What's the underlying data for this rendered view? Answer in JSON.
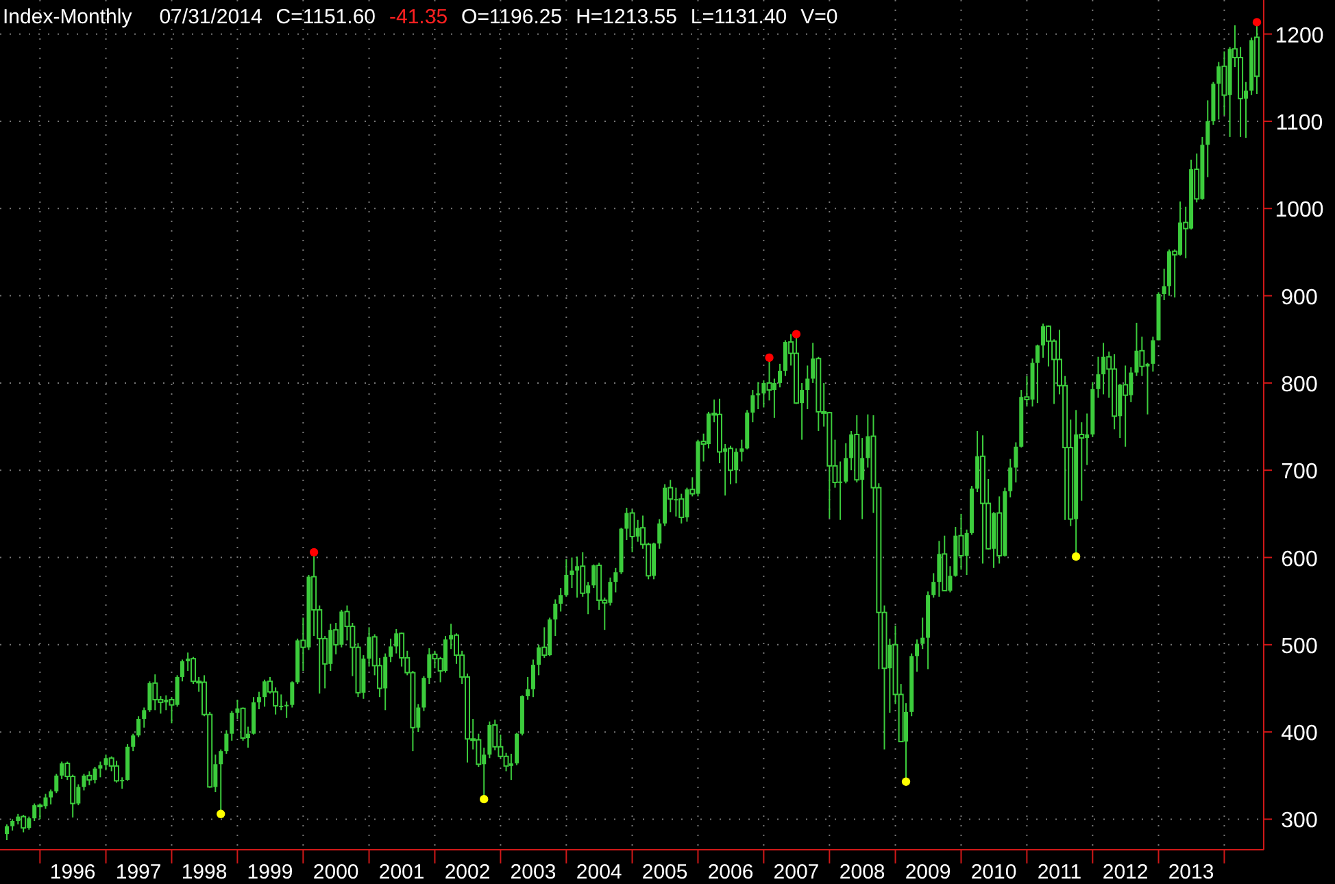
{
  "chart_data": {
    "type": "candlestick",
    "title": "Index-Monthly",
    "annotations": [
      "07/31/2014",
      "C=1151.60",
      "-41.35",
      "O=1196.25",
      "H=1213.55",
      "L=1131.40",
      "V=0"
    ],
    "color": "#3ccc3c",
    "grid": true,
    "marker": "circle",
    "xlim": [
      "1995-05-24",
      "2014-08-08"
    ],
    "xticks": [
      {
        "value": "1996-01",
        "label": null
      },
      {
        "value": "1996-07",
        "label": "1996"
      },
      {
        "value": "1997-01",
        "label": null
      },
      {
        "value": "1997-07",
        "label": "1997"
      },
      {
        "value": "1998-01",
        "label": null
      },
      {
        "value": "1998-07",
        "label": "1998"
      },
      {
        "value": "1999-01",
        "label": null
      },
      {
        "value": "1999-07",
        "label": "1999"
      },
      {
        "value": "2000-01",
        "label": null
      },
      {
        "value": "2000-07",
        "label": "2000"
      },
      {
        "value": "2001-01",
        "label": null
      },
      {
        "value": "2001-07",
        "label": "2001"
      },
      {
        "value": "2002-01",
        "label": null
      },
      {
        "value": "2002-07",
        "label": "2002"
      },
      {
        "value": "2003-01",
        "label": null
      },
      {
        "value": "2003-07",
        "label": "2003"
      },
      {
        "value": "2004-01",
        "label": null
      },
      {
        "value": "2004-07",
        "label": "2004"
      },
      {
        "value": "2005-01",
        "label": null
      },
      {
        "value": "2005-07",
        "label": "2005"
      },
      {
        "value": "2006-01",
        "label": null
      },
      {
        "value": "2006-07",
        "label": "2006"
      },
      {
        "value": "2007-01",
        "label": null
      },
      {
        "value": "2007-07",
        "label": "2007"
      },
      {
        "value": "2008-01",
        "label": null
      },
      {
        "value": "2008-07",
        "label": "2008"
      },
      {
        "value": "2009-01",
        "label": null
      },
      {
        "value": "2009-07",
        "label": "2009"
      },
      {
        "value": "2010-01",
        "label": null
      },
      {
        "value": "2010-07",
        "label": "2010"
      },
      {
        "value": "2011-01",
        "label": null
      },
      {
        "value": "2011-07",
        "label": "2011"
      },
      {
        "value": "2012-01",
        "label": null
      },
      {
        "value": "2012-07",
        "label": "2012"
      },
      {
        "value": "2013-01",
        "label": null
      },
      {
        "value": "2013-07",
        "label": "2013"
      },
      {
        "value": "2014-01",
        "label": null
      }
    ],
    "ylim": [
      265,
      1239
    ],
    "yticks": [
      300,
      400,
      500,
      600,
      700,
      800,
      900,
      1000,
      1100,
      1200
    ],
    "x": [
      "1995-07",
      "1995-08",
      "1995-09",
      "1995-10",
      "1995-11",
      "1995-12",
      "1996-01",
      "1996-02",
      "1996-03",
      "1996-04",
      "1996-05",
      "1996-06",
      "1996-07",
      "1996-08",
      "1996-09",
      "1996-10",
      "1996-11",
      "1996-12",
      "1997-01",
      "1997-02",
      "1997-03",
      "1997-04",
      "1997-05",
      "1997-06",
      "1997-07",
      "1997-08",
      "1997-09",
      "1997-10",
      "1997-11",
      "1997-12",
      "1998-01",
      "1998-02",
      "1998-03",
      "1998-04",
      "1998-05",
      "1998-06",
      "1998-07",
      "1998-08",
      "1998-09",
      "1998-10",
      "1998-11",
      "1998-12",
      "1999-01",
      "1999-02",
      "1999-03",
      "1999-04",
      "1999-05",
      "1999-06",
      "1999-07",
      "1999-08",
      "1999-09",
      "1999-10",
      "1999-11",
      "1999-12",
      "2000-01",
      "2000-02",
      "2000-03",
      "2000-04",
      "2000-05",
      "2000-06",
      "2000-07",
      "2000-08",
      "2000-09",
      "2000-10",
      "2000-11",
      "2000-12",
      "2001-01",
      "2001-02",
      "2001-03",
      "2001-04",
      "2001-05",
      "2001-06",
      "2001-07",
      "2001-08",
      "2001-09",
      "2001-10",
      "2001-11",
      "2001-12",
      "2002-01",
      "2002-02",
      "2002-03",
      "2002-04",
      "2002-05",
      "2002-06",
      "2002-07",
      "2002-08",
      "2002-09",
      "2002-10",
      "2002-11",
      "2002-12",
      "2003-01",
      "2003-02",
      "2003-03",
      "2003-04",
      "2003-05",
      "2003-06",
      "2003-07",
      "2003-08",
      "2003-09",
      "2003-10",
      "2003-11",
      "2003-12",
      "2004-01",
      "2004-02",
      "2004-03",
      "2004-04",
      "2004-05",
      "2004-06",
      "2004-07",
      "2004-08",
      "2004-09",
      "2004-10",
      "2004-11",
      "2004-12",
      "2005-01",
      "2005-02",
      "2005-03",
      "2005-04",
      "2005-05",
      "2005-06",
      "2005-07",
      "2005-08",
      "2005-09",
      "2005-10",
      "2005-11",
      "2005-12",
      "2006-01",
      "2006-02",
      "2006-03",
      "2006-04",
      "2006-05",
      "2006-06",
      "2006-07",
      "2006-08",
      "2006-09",
      "2006-10",
      "2006-11",
      "2006-12",
      "2007-01",
      "2007-02",
      "2007-03",
      "2007-04",
      "2007-05",
      "2007-06",
      "2007-07",
      "2007-08",
      "2007-09",
      "2007-10",
      "2007-11",
      "2007-12",
      "2008-01",
      "2008-02",
      "2008-03",
      "2008-04",
      "2008-05",
      "2008-06",
      "2008-07",
      "2008-08",
      "2008-09",
      "2008-10",
      "2008-11",
      "2008-12",
      "2009-01",
      "2009-02",
      "2009-03",
      "2009-04",
      "2009-05",
      "2009-06",
      "2009-07",
      "2009-08",
      "2009-09",
      "2009-10",
      "2009-11",
      "2009-12",
      "2010-01",
      "2010-02",
      "2010-03",
      "2010-04",
      "2010-05",
      "2010-06",
      "2010-07",
      "2010-08",
      "2010-09",
      "2010-10",
      "2010-11",
      "2010-12",
      "2011-01",
      "2011-02",
      "2011-03",
      "2011-04",
      "2011-05",
      "2011-06",
      "2011-07",
      "2011-08",
      "2011-09",
      "2011-10",
      "2011-11",
      "2011-12",
      "2012-01",
      "2012-02",
      "2012-03",
      "2012-04",
      "2012-05",
      "2012-06",
      "2012-07",
      "2012-08",
      "2012-09",
      "2012-10",
      "2012-11",
      "2012-12",
      "2013-01",
      "2013-02",
      "2013-03",
      "2013-04",
      "2013-05",
      "2013-06",
      "2013-07",
      "2013-08",
      "2013-09",
      "2013-10",
      "2013-11",
      "2013-12",
      "2014-01",
      "2014-02",
      "2014-03",
      "2014-04",
      "2014-05",
      "2014-06",
      "2014-07"
    ],
    "ohlc": [
      [
        283,
        294,
        276,
        292
      ],
      [
        292,
        300,
        287,
        298
      ],
      [
        298,
        306,
        294,
        303
      ],
      [
        303,
        305,
        285,
        290
      ],
      [
        290,
        303,
        288,
        301
      ],
      [
        301,
        318,
        298,
        316
      ],
      [
        316,
        318,
        300,
        315
      ],
      [
        315,
        329,
        312,
        325
      ],
      [
        325,
        334,
        317,
        332
      ],
      [
        332,
        352,
        330,
        350
      ],
      [
        350,
        366,
        346,
        364
      ],
      [
        364,
        366,
        345,
        349
      ],
      [
        349,
        351,
        302,
        318
      ],
      [
        318,
        340,
        316,
        337
      ],
      [
        337,
        352,
        333,
        350
      ],
      [
        350,
        355,
        339,
        345
      ],
      [
        345,
        360,
        341,
        358
      ],
      [
        358,
        366,
        348,
        362
      ],
      [
        362,
        374,
        356,
        370
      ],
      [
        370,
        372,
        355,
        361
      ],
      [
        361,
        367,
        342,
        344
      ],
      [
        344,
        348,
        335,
        345
      ],
      [
        345,
        386,
        344,
        383
      ],
      [
        383,
        398,
        378,
        396
      ],
      [
        396,
        418,
        394,
        415
      ],
      [
        415,
        428,
        405,
        425
      ],
      [
        425,
        458,
        423,
        456
      ],
      [
        456,
        466,
        425,
        437
      ],
      [
        437,
        441,
        421,
        434
      ],
      [
        434,
        442,
        425,
        437
      ],
      [
        437,
        440,
        410,
        431
      ],
      [
        431,
        465,
        429,
        463
      ],
      [
        463,
        483,
        458,
        481
      ],
      [
        481,
        491,
        470,
        484
      ],
      [
        484,
        486,
        455,
        458
      ],
      [
        458,
        463,
        446,
        457
      ],
      [
        457,
        465,
        418,
        420
      ],
      [
        420,
        423,
        336,
        337
      ],
      [
        337,
        374,
        331,
        363
      ],
      [
        363,
        380,
        306,
        378
      ],
      [
        378,
        402,
        375,
        398
      ],
      [
        398,
        424,
        390,
        422
      ],
      [
        422,
        437,
        415,
        427
      ],
      [
        427,
        428,
        390,
        393
      ],
      [
        393,
        406,
        382,
        398
      ],
      [
        398,
        440,
        397,
        434
      ],
      [
        434,
        446,
        426,
        440
      ],
      [
        440,
        460,
        429,
        458
      ],
      [
        458,
        463,
        444,
        446
      ],
      [
        446,
        451,
        420,
        430
      ],
      [
        430,
        443,
        425,
        430
      ],
      [
        430,
        435,
        416,
        431
      ],
      [
        431,
        458,
        428,
        457
      ],
      [
        457,
        507,
        455,
        505
      ],
      [
        505,
        531,
        470,
        497
      ],
      [
        497,
        580,
        494,
        578
      ],
      [
        578,
        606,
        510,
        540
      ],
      [
        540,
        545,
        444,
        507
      ],
      [
        507,
        510,
        450,
        478
      ],
      [
        478,
        524,
        470,
        517
      ],
      [
        517,
        525,
        489,
        500
      ],
      [
        500,
        540,
        497,
        538
      ],
      [
        538,
        545,
        505,
        521
      ],
      [
        521,
        525,
        464,
        497
      ],
      [
        497,
        502,
        440,
        445
      ],
      [
        445,
        488,
        438,
        484
      ],
      [
        484,
        520,
        475,
        509
      ],
      [
        509,
        512,
        465,
        476
      ],
      [
        476,
        485,
        440,
        450
      ],
      [
        450,
        490,
        425,
        486
      ],
      [
        486,
        507,
        480,
        498
      ],
      [
        498,
        518,
        490,
        513
      ],
      [
        513,
        514,
        475,
        485
      ],
      [
        485,
        493,
        465,
        468
      ],
      [
        468,
        470,
        378,
        405
      ],
      [
        405,
        432,
        400,
        428
      ],
      [
        428,
        464,
        424,
        462
      ],
      [
        462,
        496,
        455,
        489
      ],
      [
        489,
        493,
        473,
        484
      ],
      [
        484,
        486,
        457,
        470
      ],
      [
        470,
        510,
        468,
        506
      ],
      [
        506,
        524,
        495,
        511
      ],
      [
        511,
        513,
        478,
        488
      ],
      [
        488,
        493,
        455,
        463
      ],
      [
        463,
        467,
        365,
        392
      ],
      [
        392,
        415,
        380,
        391
      ],
      [
        391,
        398,
        360,
        363
      ],
      [
        363,
        382,
        323,
        374
      ],
      [
        374,
        412,
        370,
        408
      ],
      [
        408,
        414,
        379,
        383
      ],
      [
        383,
        397,
        370,
        372
      ],
      [
        372,
        376,
        355,
        361
      ],
      [
        361,
        375,
        345,
        364
      ],
      [
        364,
        399,
        362,
        398
      ],
      [
        398,
        442,
        396,
        441
      ],
      [
        441,
        463,
        437,
        449
      ],
      [
        449,
        483,
        440,
        477
      ],
      [
        477,
        500,
        465,
        497
      ],
      [
        497,
        520,
        485,
        488
      ],
      [
        488,
        531,
        487,
        529
      ],
      [
        529,
        552,
        510,
        547
      ],
      [
        547,
        565,
        538,
        557
      ],
      [
        557,
        598,
        555,
        580
      ],
      [
        580,
        600,
        565,
        585
      ],
      [
        585,
        601,
        554,
        590
      ],
      [
        590,
        606,
        555,
        559
      ],
      [
        559,
        572,
        535,
        568
      ],
      [
        568,
        592,
        565,
        591
      ],
      [
        591,
        594,
        540,
        551
      ],
      [
        551,
        554,
        517,
        548
      ],
      [
        548,
        577,
        545,
        572
      ],
      [
        572,
        588,
        560,
        583
      ],
      [
        583,
        634,
        581,
        633
      ],
      [
        633,
        657,
        620,
        651
      ],
      [
        651,
        655,
        606,
        624
      ],
      [
        624,
        643,
        618,
        634
      ],
      [
        634,
        648,
        610,
        615
      ],
      [
        615,
        617,
        575,
        579
      ],
      [
        579,
        617,
        575,
        616
      ],
      [
        616,
        644,
        610,
        639
      ],
      [
        639,
        684,
        636,
        680
      ],
      [
        680,
        689,
        652,
        667
      ],
      [
        667,
        680,
        647,
        667
      ],
      [
        667,
        673,
        639,
        646
      ],
      [
        646,
        680,
        641,
        678
      ],
      [
        678,
        692,
        670,
        673
      ],
      [
        673,
        735,
        670,
        733
      ],
      [
        733,
        742,
        710,
        730
      ],
      [
        730,
        767,
        725,
        765
      ],
      [
        765,
        781,
        755,
        764
      ],
      [
        764,
        782,
        708,
        721
      ],
      [
        721,
        730,
        671,
        725
      ],
      [
        725,
        728,
        684,
        700
      ],
      [
        700,
        725,
        685,
        721
      ],
      [
        721,
        735,
        710,
        725
      ],
      [
        725,
        769,
        724,
        766
      ],
      [
        766,
        792,
        755,
        786
      ],
      [
        786,
        801,
        770,
        788
      ],
      [
        788,
        803,
        772,
        800
      ],
      [
        800,
        829,
        780,
        792
      ],
      [
        792,
        805,
        760,
        800
      ],
      [
        800,
        822,
        795,
        814
      ],
      [
        814,
        849,
        808,
        847
      ],
      [
        847,
        856,
        820,
        834
      ],
      [
        834,
        855,
        776,
        777
      ],
      [
        777,
        800,
        735,
        792
      ],
      [
        792,
        820,
        770,
        805
      ],
      [
        805,
        846,
        800,
        828
      ],
      [
        828,
        830,
        745,
        767
      ],
      [
        767,
        800,
        750,
        766
      ],
      [
        766,
        767,
        645,
        705
      ],
      [
        705,
        735,
        680,
        686
      ],
      [
        686,
        710,
        643,
        687
      ],
      [
        687,
        731,
        685,
        714
      ],
      [
        714,
        745,
        700,
        741
      ],
      [
        741,
        763,
        686,
        689
      ],
      [
        689,
        737,
        644,
        714
      ],
      [
        714,
        764,
        703,
        739
      ],
      [
        739,
        763,
        651,
        680
      ],
      [
        680,
        685,
        472,
        537
      ],
      [
        537,
        545,
        380,
        473
      ],
      [
        473,
        507,
        422,
        500
      ],
      [
        500,
        522,
        432,
        443
      ],
      [
        443,
        455,
        389,
        389
      ],
      [
        389,
        433,
        343,
        423
      ],
      [
        423,
        490,
        418,
        487
      ],
      [
        487,
        506,
        469,
        501
      ],
      [
        501,
        531,
        495,
        508
      ],
      [
        508,
        561,
        472,
        557
      ],
      [
        557,
        582,
        554,
        572
      ],
      [
        572,
        619,
        555,
        604
      ],
      [
        604,
        625,
        562,
        562
      ],
      [
        562,
        590,
        560,
        579
      ],
      [
        579,
        635,
        578,
        625
      ],
      [
        625,
        650,
        586,
        602
      ],
      [
        602,
        632,
        580,
        628
      ],
      [
        628,
        682,
        626,
        679
      ],
      [
        679,
        745,
        675,
        716
      ],
      [
        716,
        740,
        593,
        662
      ],
      [
        662,
        690,
        609,
        610
      ],
      [
        610,
        652,
        588,
        651
      ],
      [
        651,
        670,
        593,
        602
      ],
      [
        602,
        680,
        601,
        676
      ],
      [
        676,
        713,
        669,
        703
      ],
      [
        703,
        732,
        686,
        727
      ],
      [
        727,
        792,
        726,
        784
      ],
      [
        784,
        808,
        773,
        781
      ],
      [
        781,
        828,
        773,
        823
      ],
      [
        823,
        844,
        777,
        843
      ],
      [
        843,
        868,
        829,
        865
      ],
      [
        865,
        866,
        819,
        848
      ],
      [
        848,
        850,
        776,
        827
      ],
      [
        827,
        861,
        787,
        797
      ],
      [
        797,
        808,
        643,
        726
      ],
      [
        726,
        758,
        636,
        644
      ],
      [
        644,
        769,
        601,
        741
      ],
      [
        741,
        755,
        665,
        737
      ],
      [
        737,
        765,
        706,
        741
      ],
      [
        741,
        801,
        738,
        793
      ],
      [
        793,
        830,
        783,
        810
      ],
      [
        810,
        846,
        787,
        830
      ],
      [
        830,
        836,
        783,
        816
      ],
      [
        816,
        833,
        747,
        762
      ],
      [
        762,
        799,
        737,
        798
      ],
      [
        798,
        820,
        727,
        786
      ],
      [
        786,
        818,
        778,
        812
      ],
      [
        812,
        869,
        808,
        837
      ],
      [
        837,
        853,
        808,
        819
      ],
      [
        819,
        823,
        764,
        822
      ],
      [
        822,
        853,
        813,
        849
      ],
      [
        849,
        904,
        849,
        902
      ],
      [
        902,
        931,
        895,
        911
      ],
      [
        911,
        953,
        900,
        951
      ],
      [
        951,
        953,
        898,
        947
      ],
      [
        947,
        1008,
        946,
        984
      ],
      [
        984,
        1002,
        943,
        977
      ],
      [
        977,
        1056,
        976,
        1045
      ],
      [
        1045,
        1063,
        1007,
        1011
      ],
      [
        1011,
        1082,
        1010,
        1073
      ],
      [
        1073,
        1124,
        1036,
        1100
      ],
      [
        1100,
        1145,
        1096,
        1143
      ],
      [
        1143,
        1168,
        1102,
        1163
      ],
      [
        1163,
        1180,
        1107,
        1130
      ],
      [
        1130,
        1185,
        1082,
        1183
      ],
      [
        1183,
        1210,
        1162,
        1173
      ],
      [
        1173,
        1185,
        1082,
        1126
      ],
      [
        1126,
        1145,
        1081,
        1135
      ],
      [
        1135,
        1196,
        1130,
        1193
      ],
      [
        1196.25,
        1213.55,
        1131.4,
        1151.6
      ]
    ],
    "series": [
      {
        "type": "scatter",
        "color": "#ff0000",
        "x": [
          "2000-03",
          "2007-02",
          "2007-07",
          "2014-07"
        ],
        "values": [
          606,
          829,
          856,
          1213.55
        ]
      },
      {
        "type": "scatter",
        "color": "#ffff00",
        "x": [
          "1998-10",
          "2002-10",
          "2009-03",
          "2011-10"
        ],
        "values": [
          306,
          323,
          343,
          601
        ]
      }
    ]
  }
}
